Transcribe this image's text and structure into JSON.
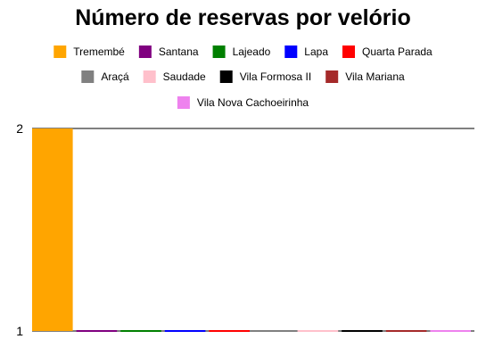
{
  "chart_data": {
    "type": "bar",
    "title": "Número de reservas por velório",
    "xlabel": "",
    "ylabel": "",
    "ylim": [
      1,
      2
    ],
    "yticks": [
      1,
      2
    ],
    "grid": false,
    "legend_position": "top",
    "series": [
      {
        "name": "Tremembé",
        "values": [
          2
        ],
        "color": "#FFA500"
      },
      {
        "name": "Santana",
        "values": [
          1
        ],
        "color": "#800080"
      },
      {
        "name": "Lajeado",
        "values": [
          1
        ],
        "color": "#008000"
      },
      {
        "name": "Lapa",
        "values": [
          1
        ],
        "color": "#0000FF"
      },
      {
        "name": "Quarta Parada",
        "values": [
          1
        ],
        "color": "#FF0000"
      },
      {
        "name": "Araçá",
        "values": [
          1
        ],
        "color": "#808080"
      },
      {
        "name": "Saudade",
        "values": [
          1
        ],
        "color": "#FFC0CB"
      },
      {
        "name": "Vila Formosa II",
        "values": [
          1
        ],
        "color": "#000000"
      },
      {
        "name": "Vila Mariana",
        "values": [
          1
        ],
        "color": "#A52A2A"
      },
      {
        "name": "Vila Nova Cachoeirinha",
        "values": [
          1
        ],
        "color": "#EE82EE"
      }
    ]
  }
}
